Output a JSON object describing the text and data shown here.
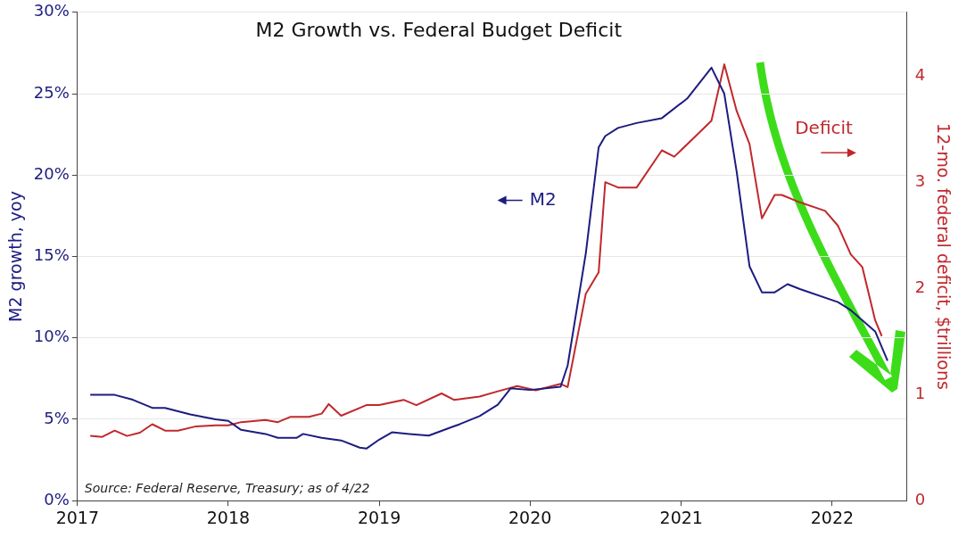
{
  "chart_data": {
    "type": "line",
    "title": "M2 Growth vs. Federal Budget Deficit",
    "ylabel": "M2 growth, yoy",
    "y2label": "12-mo. federal deficit, $trillions",
    "annotations": [
      "Source: Federal Reserve, Treasury; as of 4/22"
    ],
    "series": [
      {
        "name": "M2",
        "color": "#1c1c80",
        "axis": "y",
        "x": [
          "2017-02-01",
          "2017-04-01",
          "2017-05-15",
          "2017-07-01",
          "2017-08-01",
          "2017-10-01",
          "2017-12-01",
          "2018-01-01",
          "2018-02-01",
          "2018-04-01",
          "2018-05-01",
          "2018-06-15",
          "2018-07-01",
          "2018-08-15",
          "2018-10-01",
          "2018-11-15",
          "2018-12-01",
          "2019-01-01",
          "2019-02-01",
          "2019-03-15",
          "2019-05-01",
          "2019-07-15",
          "2019-09-01",
          "2019-10-15",
          "2019-11-15",
          "2020-01-01",
          "2020-03-15",
          "2020-04-01",
          "2020-05-15",
          "2020-06-15",
          "2020-07-01",
          "2020-08-01",
          "2020-09-15",
          "2020-11-15",
          "2021-01-15",
          "2021-03-15",
          "2021-04-15",
          "2021-05-15",
          "2021-06-15",
          "2021-07-15",
          "2021-08-15",
          "2021-09-15",
          "2021-10-15",
          "2022-01-15",
          "2022-02-15",
          "2022-04-15",
          "2022-05-15"
        ],
        "values": [
          6.5,
          6.5,
          6.2,
          5.7,
          5.7,
          5.3,
          5.0,
          4.9,
          4.35,
          4.1,
          3.86,
          3.86,
          4.1,
          3.86,
          3.7,
          3.26,
          3.2,
          3.75,
          4.2,
          4.1,
          4.0,
          4.7,
          5.2,
          5.9,
          6.9,
          6.8,
          7.0,
          8.3,
          15.2,
          21.7,
          22.4,
          22.9,
          23.2,
          23.5,
          24.7,
          26.6,
          25.0,
          20.2,
          14.4,
          12.8,
          12.8,
          13.3,
          13.0,
          12.2,
          11.7,
          10.4,
          8.6
        ]
      },
      {
        "name": "Deficit",
        "color": "#c0282c",
        "axis": "y2",
        "x": [
          "2017-02-01",
          "2017-03-01",
          "2017-04-01",
          "2017-05-01",
          "2017-06-01",
          "2017-07-01",
          "2017-08-01",
          "2017-09-01",
          "2017-10-15",
          "2017-12-01",
          "2018-01-01",
          "2018-02-01",
          "2018-04-01",
          "2018-05-01",
          "2018-06-01",
          "2018-07-15",
          "2018-08-15",
          "2018-09-01",
          "2018-10-01",
          "2018-12-01",
          "2019-01-01",
          "2019-03-01",
          "2019-04-01",
          "2019-06-01",
          "2019-07-01",
          "2019-09-01",
          "2019-10-15",
          "2019-12-01",
          "2020-01-15",
          "2020-03-15",
          "2020-04-01",
          "2020-05-15",
          "2020-06-15",
          "2020-07-01",
          "2020-08-01",
          "2020-09-15",
          "2020-11-15",
          "2020-12-15",
          "2021-02-01",
          "2021-03-15",
          "2021-04-15",
          "2021-05-15",
          "2021-06-15",
          "2021-07-15",
          "2021-08-15",
          "2021-09-01",
          "2021-10-15",
          "2021-12-15",
          "2022-01-15",
          "2022-02-15",
          "2022-03-15",
          "2022-04-15",
          "2022-05-01"
        ],
        "values": [
          0.61,
          0.6,
          0.66,
          0.61,
          0.64,
          0.72,
          0.66,
          0.66,
          0.7,
          0.71,
          0.71,
          0.74,
          0.76,
          0.74,
          0.79,
          0.79,
          0.82,
          0.91,
          0.8,
          0.9,
          0.9,
          0.95,
          0.9,
          1.01,
          0.95,
          0.98,
          1.03,
          1.08,
          1.04,
          1.1,
          1.07,
          1.95,
          2.15,
          3.0,
          2.95,
          2.95,
          3.3,
          3.24,
          3.42,
          3.58,
          4.11,
          3.67,
          3.36,
          2.66,
          2.88,
          2.88,
          2.81,
          2.73,
          2.59,
          2.32,
          2.2,
          1.7,
          1.55
        ]
      }
    ],
    "xlim": [
      "2017",
      "2022-07"
    ],
    "xticks": [
      "2017",
      "2018",
      "2019",
      "2020",
      "2021",
      "2022"
    ],
    "ylim": [
      0,
      30
    ],
    "yticks": [
      {
        "value": 0,
        "label": "0%"
      },
      {
        "value": 5,
        "label": "5%"
      },
      {
        "value": 10,
        "label": "10%"
      },
      {
        "value": 15,
        "label": "15%"
      },
      {
        "value": 20,
        "label": "20%"
      },
      {
        "value": 25,
        "label": "25%"
      },
      {
        "value": 30,
        "label": "30%"
      }
    ],
    "y2lim": [
      0,
      4.6
    ],
    "y2ticks": [
      0,
      1,
      2,
      3,
      4
    ],
    "grid": "y",
    "legend": "top",
    "marker": "none",
    "line_style": "solid"
  }
}
